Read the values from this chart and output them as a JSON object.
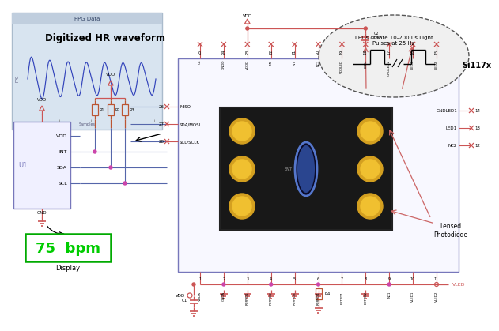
{
  "bg_color": "#ffffff",
  "ppg_title": "PPG Data",
  "ppg_label": "Digitized HR waveform",
  "bpm_text": "75  bpm",
  "display_label": "Display",
  "si117x_label": "Si117x",
  "led_bubble_text": "LEDs create 10-200 us Light\nPulses at 25 Hz",
  "lensed_label": "Lensed\nPhotodiode",
  "ic_label": "U1",
  "vdd_color": "#cc5555",
  "gnd_color": "#cc5555",
  "blue_box_color": "#7777bb",
  "blue_wire_color": "#5566aa",
  "pink_dot_color": "#cc44aa",
  "resistor_color": "#bb5533",
  "bpm_green": "#00cc00",
  "bpm_box_color": "#00aa00",
  "schematic_bg": "#d8e4f0",
  "ppg_border": "#aabbcc",
  "bubble_bg": "#f0f0f0",
  "chip_dark": "#181818",
  "pad_gold": "#d4a020",
  "pad_gold2": "#f0c030",
  "top_pins": [
    "CS",
    "GNDD",
    "VDDD",
    "MS",
    "INT",
    "NC3",
    "VDDLED",
    "LED4",
    "GNDLED2",
    "LED3",
    "LED2"
  ],
  "top_nums": [
    "25",
    "24",
    "23",
    "22",
    "21",
    "20",
    "19",
    "18",
    "17",
    "16",
    "15"
  ],
  "bot_pins": [
    "VDDA",
    "GNDA",
    "RSRVD1",
    "RSRVD2",
    "RSRVD3",
    "RSRVD4",
    "EXTPD1",
    "EXTPD2",
    "NC1",
    "VLED1",
    "VLED2"
  ],
  "bot_nums": [
    "1",
    "2",
    "3",
    "4",
    "5",
    "6",
    "7",
    "8",
    "9",
    "10",
    "11"
  ],
  "right_pins": [
    "GNDLED1",
    "LED1",
    "NC2"
  ],
  "right_nums": [
    "14",
    "13",
    "12"
  ],
  "left_labels": [
    "MISO",
    "SDA/MOSI",
    "SCL/SCLK"
  ],
  "left_nums": [
    "26",
    "27",
    "28"
  ]
}
